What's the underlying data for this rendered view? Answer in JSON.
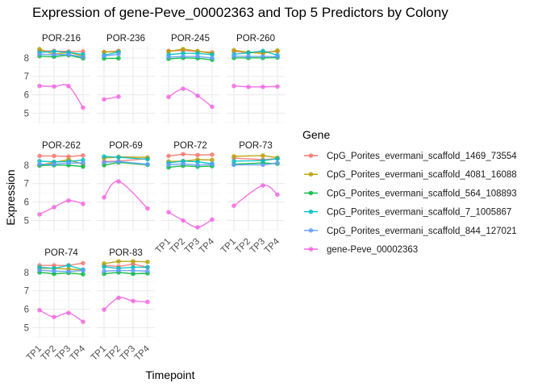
{
  "chart_data": {
    "type": "line",
    "title": "Expression of gene-Peve_00002363 and Top 5 Predictors by Colony",
    "xlabel": "Timepoint",
    "ylabel": "Expression",
    "x_categories": [
      "TP1",
      "TP2",
      "TP3",
      "TP4"
    ],
    "y_ticks": [
      5,
      6,
      7,
      8
    ],
    "ylim": [
      4.45,
      8.65
    ],
    "grid": true,
    "facet_ncol": 4,
    "legend": {
      "title": "Gene",
      "position": "right",
      "entries": [
        {
          "name": "CpG_Porites_evermani_scaffold_1469_73554",
          "color": "#F8766D"
        },
        {
          "name": "CpG_Porites_evermani_scaffold_4081_16088",
          "color": "#B79F00"
        },
        {
          "name": "CpG_Porites_evermani_scaffold_564_108893",
          "color": "#00BA38"
        },
        {
          "name": "CpG_Porites_evermani_scaffold_7_1005867",
          "color": "#00BFC4"
        },
        {
          "name": "CpG_Porites_evermani_scaffold_844_127021",
          "color": "#619CFF"
        },
        {
          "name": "gene-Peve_00002363",
          "color": "#F564E3"
        }
      ]
    },
    "panels": [
      {
        "colony": "POR-216",
        "series": [
          [
            8.38,
            8.38,
            8.35,
            8.35
          ],
          [
            8.48,
            8.2,
            8.3,
            8.1
          ],
          [
            8.1,
            8.07,
            8.15,
            7.98
          ],
          [
            8.3,
            8.35,
            8.3,
            8.2
          ],
          [
            8.2,
            8.18,
            8.18,
            8.05
          ],
          [
            6.48,
            6.45,
            6.47,
            5.3
          ]
        ]
      },
      {
        "colony": "POR-236",
        "series": [
          [
            8.32,
            8.38,
            null,
            null
          ],
          [
            8.32,
            8.35,
            null,
            null
          ],
          [
            7.97,
            7.98,
            null,
            null
          ],
          [
            8.15,
            8.32,
            null,
            null
          ],
          [
            8.1,
            8.2,
            null,
            null
          ],
          [
            5.75,
            5.9,
            null,
            null
          ]
        ]
      },
      {
        "colony": "POR-245",
        "series": [
          [
            8.38,
            8.4,
            8.35,
            8.3
          ],
          [
            8.35,
            8.48,
            8.37,
            8.25
          ],
          [
            7.95,
            8.0,
            7.98,
            7.9
          ],
          [
            8.18,
            8.25,
            8.25,
            8.18
          ],
          [
            8.05,
            8.08,
            8.08,
            8.0
          ],
          [
            5.88,
            6.33,
            5.95,
            5.35
          ]
        ]
      },
      {
        "colony": "POR-260",
        "series": [
          [
            8.35,
            8.3,
            8.33,
            8.35
          ],
          [
            8.42,
            8.3,
            8.25,
            8.4
          ],
          [
            8.0,
            8.0,
            8.0,
            8.02
          ],
          [
            8.2,
            8.28,
            8.38,
            8.15
          ],
          [
            8.1,
            8.08,
            8.08,
            8.07
          ],
          [
            6.48,
            6.43,
            6.43,
            6.45
          ]
        ]
      },
      {
        "colony": "POR-262",
        "series": [
          [
            8.5,
            8.5,
            8.47,
            8.53
          ],
          [
            8.0,
            8.15,
            8.3,
            8.05
          ],
          [
            7.98,
            8.0,
            8.0,
            7.92
          ],
          [
            8.22,
            8.18,
            8.2,
            8.28
          ],
          [
            8.05,
            8.05,
            8.12,
            8.12
          ],
          [
            5.33,
            5.72,
            6.08,
            5.9
          ]
        ]
      },
      {
        "colony": "POR-69",
        "series": [
          [
            8.2,
            8.22,
            null,
            8.35
          ],
          [
            8.38,
            8.45,
            null,
            8.42
          ],
          [
            8.0,
            8.15,
            null,
            8.02
          ],
          [
            8.47,
            8.43,
            null,
            8.32
          ],
          [
            8.15,
            8.2,
            null,
            8.05
          ],
          [
            6.25,
            7.12,
            null,
            5.65
          ]
        ]
      },
      {
        "colony": "POR-72",
        "series": [
          [
            8.5,
            8.6,
            8.55,
            8.57
          ],
          [
            8.2,
            8.22,
            8.3,
            8.28
          ],
          [
            7.88,
            7.97,
            7.92,
            7.95
          ],
          [
            8.12,
            8.22,
            8.18,
            8.08
          ],
          [
            8.02,
            8.08,
            8.0,
            8.05
          ],
          [
            5.45,
            5.0,
            4.63,
            5.05
          ]
        ]
      },
      {
        "colony": "POR-73",
        "series": [
          [
            8.38,
            null,
            8.3,
            8.35
          ],
          [
            8.48,
            null,
            8.52,
            8.4
          ],
          [
            8.05,
            null,
            8.12,
            8.08
          ],
          [
            8.22,
            null,
            8.25,
            8.35
          ],
          [
            8.02,
            null,
            8.02,
            8.12
          ],
          [
            5.8,
            null,
            6.9,
            6.4
          ]
        ]
      },
      {
        "colony": "POR-74",
        "series": [
          [
            8.38,
            8.38,
            8.38,
            8.5
          ],
          [
            8.22,
            8.22,
            8.18,
            8.12
          ],
          [
            8.0,
            7.92,
            7.97,
            7.9
          ],
          [
            8.28,
            8.22,
            8.38,
            8.15
          ],
          [
            8.12,
            8.07,
            8.05,
            8.1
          ],
          [
            5.95,
            5.58,
            5.8,
            5.32
          ]
        ]
      },
      {
        "colony": "POR-83",
        "series": [
          [
            8.38,
            8.32,
            8.45,
            8.28
          ],
          [
            8.48,
            8.6,
            8.6,
            8.57
          ],
          [
            7.92,
            8.0,
            7.92,
            7.95
          ],
          [
            8.3,
            8.22,
            8.28,
            8.28
          ],
          [
            8.07,
            8.1,
            8.1,
            8.07
          ],
          [
            5.98,
            6.62,
            6.45,
            6.4
          ]
        ]
      }
    ]
  }
}
